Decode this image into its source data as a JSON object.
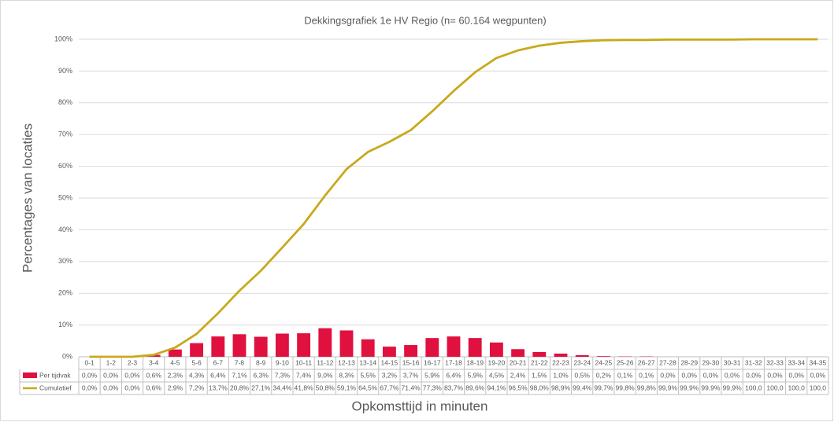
{
  "chart_data": {
    "type": "bar-line-table",
    "title": "Dekkingsgrafiek 1e HV     Regio     (n= 60.164 wegpunten)",
    "ylabel": "Percentages van locaties",
    "xlabel": "Opkomsttijd in minuten",
    "categories": [
      "0-1",
      "1-2",
      "2-3",
      "3-4",
      "4-5",
      "5-6",
      "6-7",
      "7-8",
      "8-9",
      "9-10",
      "10-11",
      "11-12",
      "12-13",
      "13-14",
      "14-15",
      "15-16",
      "16-17",
      "17-18",
      "18-19",
      "19-20",
      "20-21",
      "21-22",
      "22-23",
      "23-24",
      "24-25",
      "25-26",
      "26-27",
      "27-28",
      "28-29",
      "29-30",
      "30-31",
      "31-32",
      "32-33",
      "33-34",
      "34-35"
    ],
    "series": [
      {
        "name": "Per tijdvak",
        "kind": "bar",
        "color": "#e0103f",
        "values": [
          0.0,
          0.0,
          0.0,
          0.6,
          2.3,
          4.3,
          6.4,
          7.1,
          6.3,
          7.3,
          7.4,
          9.0,
          8.3,
          5.5,
          3.2,
          3.7,
          5.9,
          6.4,
          5.9,
          4.5,
          2.4,
          1.5,
          1.0,
          0.5,
          0.2,
          0.1,
          0.1,
          0.0,
          0.0,
          0.0,
          0.0,
          0.0,
          0.0,
          0.0,
          0.0
        ],
        "value_labels": [
          "0,0%",
          "0,0%",
          "0,0%",
          "0,6%",
          "2,3%",
          "4,3%",
          "6,4%",
          "7,1%",
          "6,3%",
          "7,3%",
          "7,4%",
          "9,0%",
          "8,3%",
          "5,5%",
          "3,2%",
          "3,7%",
          "5,9%",
          "6,4%",
          "5,9%",
          "4,5%",
          "2,4%",
          "1,5%",
          "1,0%",
          "0,5%",
          "0,2%",
          "0,1%",
          "0,1%",
          "0,0%",
          "0,0%",
          "0,0%",
          "0,0%",
          "0,0%",
          "0,0%",
          "0,0%",
          "0,0%"
        ]
      },
      {
        "name": "Cumulatief",
        "kind": "line",
        "color": "#c8a91c",
        "values": [
          0.0,
          0.0,
          0.0,
          0.6,
          2.9,
          7.2,
          13.7,
          20.8,
          27.1,
          34.4,
          41.8,
          50.8,
          59.1,
          64.5,
          67.7,
          71.4,
          77.3,
          83.7,
          89.6,
          94.1,
          96.5,
          98.0,
          98.9,
          99.4,
          99.7,
          99.8,
          99.8,
          99.9,
          99.9,
          99.9,
          99.9,
          100.0,
          100.0,
          100.0,
          100.0
        ],
        "value_labels": [
          "0,0%",
          "0,0%",
          "0,0%",
          "0,6%",
          "2,9%",
          "7,2%",
          "13,7%",
          "20,8%",
          "27,1%",
          "34,4%",
          "41,8%",
          "50,8%",
          "59,1%",
          "64,5%",
          "67,7%",
          "71,4%",
          "77,3%",
          "83,7%",
          "89,6%",
          "94,1%",
          "96,5%",
          "98,0%",
          "98,9%",
          "99,4%",
          "99,7%",
          "99,8%",
          "99,8%",
          "99,9%",
          "99,9%",
          "99,9%",
          "99,9%",
          "100,0",
          "100,0",
          "100,0",
          "100,0"
        ]
      }
    ],
    "ylim": [
      0,
      100
    ],
    "yticks": [
      {
        "value": 0,
        "label": "0%"
      },
      {
        "value": 10,
        "label": "10%"
      },
      {
        "value": 20,
        "label": "20%"
      },
      {
        "value": 30,
        "label": "30%"
      },
      {
        "value": 40,
        "label": "40%"
      },
      {
        "value": 50,
        "label": "50%"
      },
      {
        "value": 60,
        "label": "60%"
      },
      {
        "value": 70,
        "label": "70%"
      },
      {
        "value": 80,
        "label": "80%"
      },
      {
        "value": 90,
        "label": "90%"
      },
      {
        "value": 100,
        "label": "100%"
      }
    ],
    "grid": true
  }
}
